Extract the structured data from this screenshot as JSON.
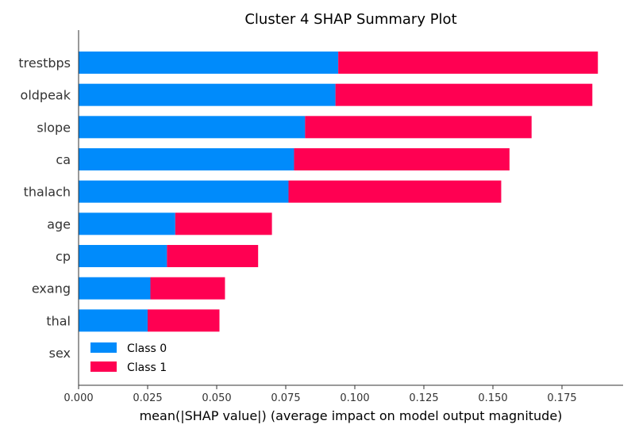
{
  "chart_data": {
    "type": "bar",
    "orientation": "horizontal",
    "stacked": true,
    "title": "Cluster 4 SHAP Summary Plot",
    "xlabel": "mean(|SHAP value|) (average impact on model output magnitude)",
    "ylabel": "",
    "xlim": [
      0.0,
      0.19
    ],
    "xticks": [
      "0.000",
      "0.025",
      "0.050",
      "0.075",
      "0.100",
      "0.125",
      "0.150",
      "0.175"
    ],
    "categories": [
      "trestbps",
      "oldpeak",
      "slope",
      "ca",
      "thalach",
      "age",
      "cp",
      "exang",
      "thal",
      "sex"
    ],
    "series": [
      {
        "name": "Class 0",
        "color": "#008bfb",
        "values": [
          0.094,
          0.093,
          0.082,
          0.078,
          0.076,
          0.035,
          0.032,
          0.026,
          0.025,
          0.0
        ]
      },
      {
        "name": "Class 1",
        "color": "#ff0052",
        "values": [
          0.094,
          0.093,
          0.082,
          0.078,
          0.077,
          0.035,
          0.033,
          0.027,
          0.026,
          0.0
        ]
      }
    ],
    "legend_position": "lower-left",
    "grid": false
  }
}
